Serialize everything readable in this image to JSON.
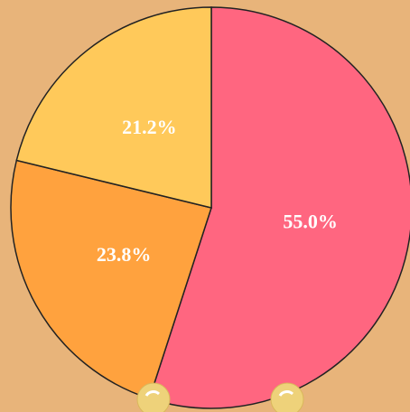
{
  "chart_data": {
    "type": "pie",
    "categories": [
      null,
      null,
      null
    ],
    "values": [
      55.0,
      23.8,
      21.2
    ],
    "value_labels": [
      "55.0%",
      "23.8%",
      "21.2%"
    ],
    "colors": [
      "#ff6680",
      "#ffa23e",
      "#ffc95a"
    ]
  }
}
